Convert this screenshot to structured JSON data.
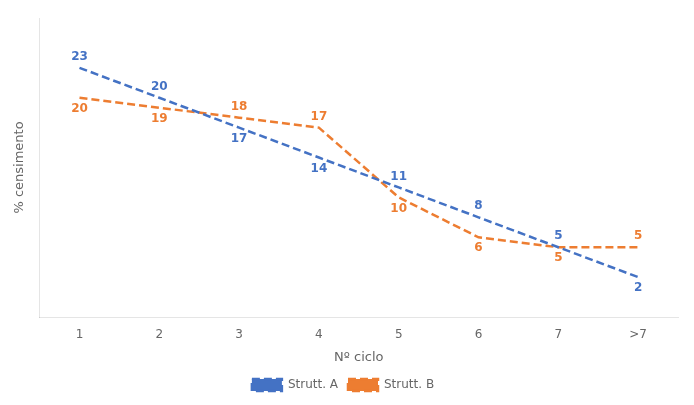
{
  "chart_data": {
    "type": "line",
    "categories": [
      "1",
      "2",
      "3",
      "4",
      "5",
      "6",
      "7",
      ">7"
    ],
    "xlabel": "Nº ciclo",
    "ylabel": "% censimento",
    "series": [
      {
        "name": "Strutt. A",
        "color": "#4472C4",
        "values": [
          23,
          20,
          17,
          14,
          11,
          8,
          5,
          2
        ],
        "line_style": "dashed"
      },
      {
        "name": "Strutt. B",
        "color": "#ED7D31",
        "values": [
          20,
          19,
          18,
          17,
          10,
          6,
          5,
          5
        ],
        "line_style": "dashed"
      }
    ],
    "ylim": [
      -2,
      28
    ],
    "tick_labels": "x",
    "grid": false,
    "legend": "bottom",
    "data_labels": true
  }
}
